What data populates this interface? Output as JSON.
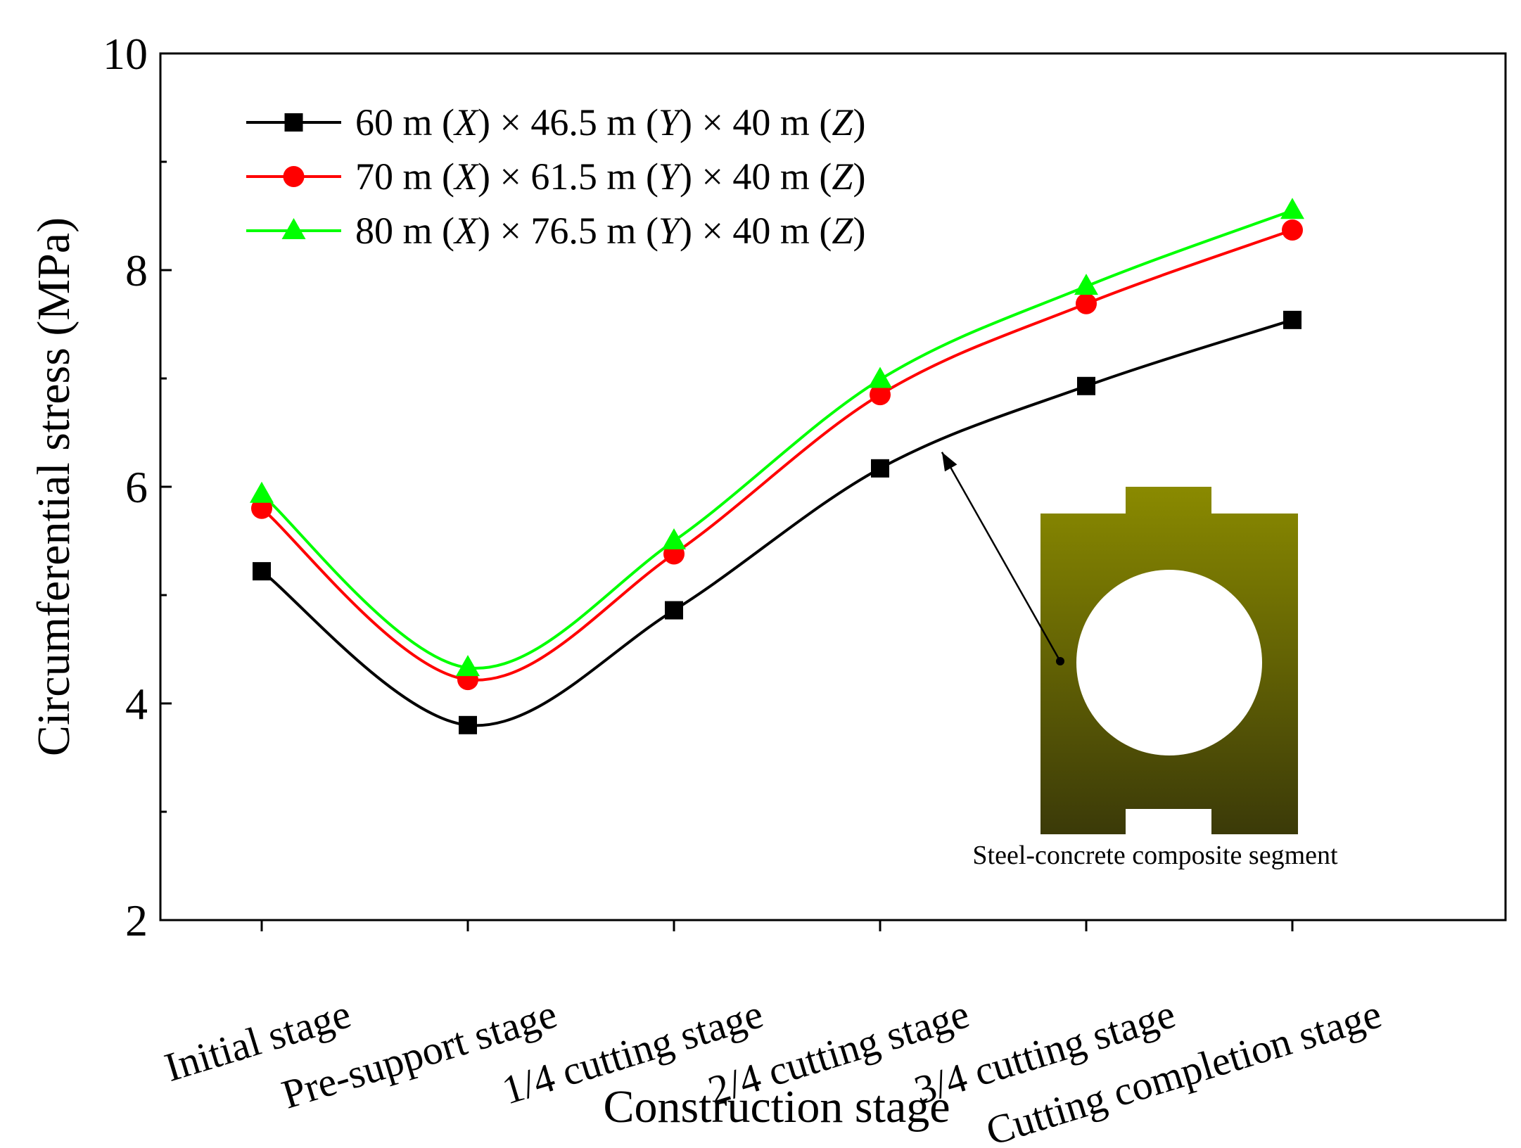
{
  "chart_data": {
    "type": "line",
    "title": "",
    "xlabel": "Construction stage",
    "ylabel": "Circumferential stress (MPa)",
    "ylim": [
      2,
      10
    ],
    "yticks": [
      "2",
      "4",
      "6",
      "8",
      "10"
    ],
    "categories": [
      "Initial stage",
      "Pre-support stage",
      "1/4 cutting stage",
      "2/4 cutting stage",
      "3/4 cutting stage",
      "Cutting completion stage"
    ],
    "series": [
      {
        "name": "60 m (X) × 46.5 m (Y) × 40 m (Z)",
        "label_parts": [
          "60 m (",
          "X",
          ") × 46.5 m (",
          "Y",
          ") × 40 m (",
          "Z",
          ")"
        ],
        "color": "#000000",
        "marker": "square",
        "values": [
          5.22,
          3.8,
          4.86,
          6.17,
          6.93,
          7.54
        ]
      },
      {
        "name": "70 m (X) × 61.5 m (Y) × 40 m (Z)",
        "label_parts": [
          "70 m (",
          "X",
          ") × 61.5 m (",
          "Y",
          ") × 40 m (",
          "Z",
          ")"
        ],
        "color": "#ff0000",
        "marker": "circle",
        "values": [
          5.8,
          4.22,
          5.38,
          6.85,
          7.69,
          8.37
        ]
      },
      {
        "name": "80 m (X) × 76.5 m (Y) × 40 m (Z)",
        "label_parts": [
          "80 m (",
          "X",
          ") × 76.5 m (",
          "Y",
          ") × 40 m (",
          "Z",
          ")"
        ],
        "color": "#00ff00",
        "marker": "triangle",
        "values": [
          5.93,
          4.33,
          5.5,
          6.99,
          7.85,
          8.55
        ]
      }
    ],
    "legend_position": "top-left",
    "annotation": {
      "text": "Steel-concrete composite segment",
      "arrow_target_index": 3.3,
      "inset_colors": [
        "#8a8a00",
        "#3b3a08"
      ]
    }
  }
}
